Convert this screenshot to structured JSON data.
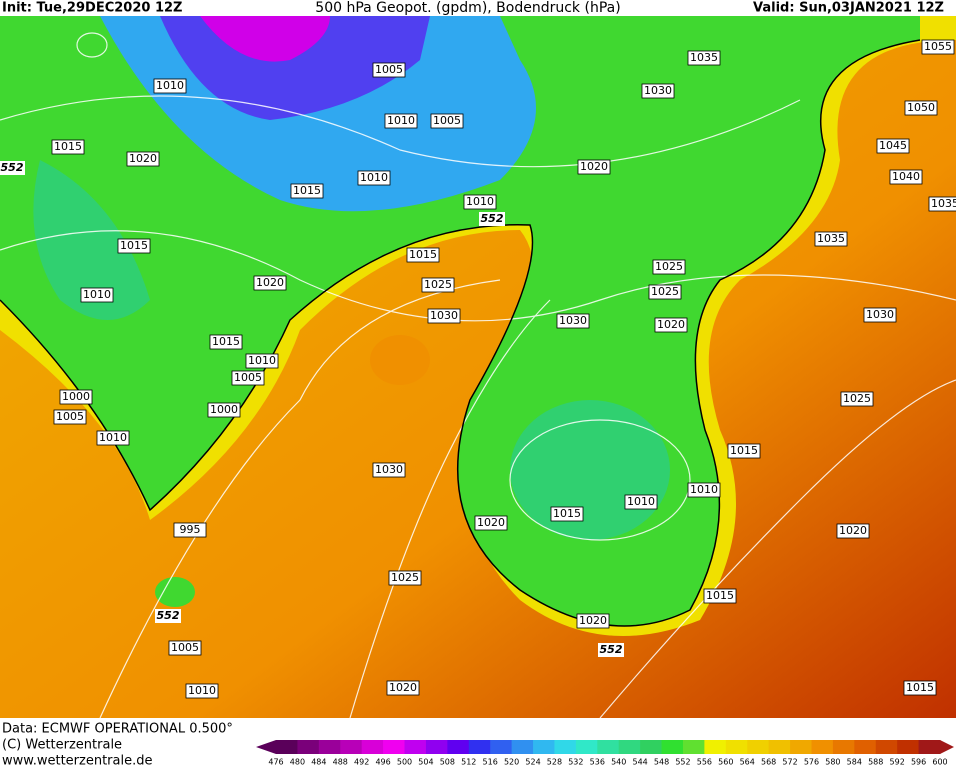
{
  "header": {
    "init": "Init: Tue,29DEC2020 12Z",
    "title": "500 hPa Geopot. (gpdm), Bodendruck (hPa)",
    "valid": "Valid: Sun,03JAN2021 12Z"
  },
  "footer": {
    "data": "Data: ECMWF OPERATIONAL 0.500°",
    "copyright": "(C) Wetterzentrale",
    "url": "www.wetterzentrale.de"
  },
  "legend": {
    "values": [
      476,
      480,
      484,
      488,
      492,
      496,
      500,
      504,
      508,
      512,
      516,
      520,
      524,
      528,
      532,
      536,
      540,
      544,
      548,
      552,
      556,
      560,
      564,
      568,
      572,
      576,
      580,
      584,
      588,
      592,
      596,
      600
    ],
    "colors": [
      "#5a005a",
      "#7a007a",
      "#9a009a",
      "#b800b8",
      "#d800d8",
      "#f000f0",
      "#c000f0",
      "#9000f0",
      "#6000f0",
      "#3030f0",
      "#3060f0",
      "#3090f0",
      "#30b8f0",
      "#30d8e8",
      "#30e8c8",
      "#30e0a0",
      "#30d880",
      "#30d060",
      "#30e030",
      "#60e030",
      "#f0f000",
      "#f0e000",
      "#f0d000",
      "#f0c000",
      "#f0a800",
      "#f09000",
      "#e87800",
      "#e06000",
      "#d04800",
      "#c03000",
      "#a01818"
    ]
  },
  "isobar_labels": [
    "1010",
    "1005",
    "1035",
    "1055",
    "1030",
    "1050",
    "1015",
    "1020",
    "1010",
    "1005",
    "1045",
    "1020",
    "1010",
    "1040",
    "1015",
    "1010",
    "1035",
    "1015",
    "1035",
    "1015",
    "1025",
    "1020",
    "1025",
    "1025",
    "1010",
    "1030",
    "1030",
    "1020",
    "1030",
    "1015",
    "1010",
    "1005",
    "1000",
    "1025",
    "1000",
    "1005",
    "1010",
    "1015",
    "1030",
    "1010",
    "1010",
    "1015",
    "1020",
    "995",
    "1020",
    "1025",
    "1015",
    "1020",
    "1005",
    "1010",
    "1020",
    "1015"
  ],
  "geopotential_labels": [
    "552",
    "552",
    "552",
    "552"
  ]
}
